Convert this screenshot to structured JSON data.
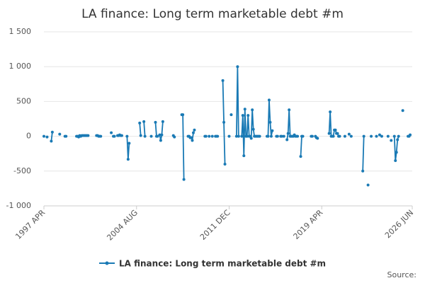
{
  "chart_data": {
    "type": "line",
    "title": "LA finance: Long term marketable debt #m",
    "source_label": "Source:",
    "categories": [
      "1997 APR",
      null,
      null,
      null,
      null,
      null,
      null,
      null,
      null,
      null,
      null,
      null,
      null,
      null,
      null,
      null,
      null,
      null,
      null,
      null,
      null,
      null,
      null,
      null,
      null,
      null,
      null,
      null,
      null,
      null,
      null,
      null,
      null,
      null,
      null,
      null,
      null,
      null,
      null,
      null,
      null,
      null,
      null,
      null,
      null,
      null,
      null,
      null,
      null,
      null,
      null,
      null,
      null,
      null,
      null,
      null,
      null,
      null,
      null,
      null,
      null,
      null,
      null,
      null,
      null,
      null,
      null,
      null,
      null,
      null,
      null,
      null,
      null,
      null,
      null,
      null,
      null,
      null,
      null,
      null,
      null,
      null,
      null,
      null,
      null,
      null,
      null,
      null,
      "2004 AUG",
      null,
      null,
      null,
      null,
      null,
      null,
      null,
      null,
      null,
      null,
      null,
      null,
      null,
      null,
      null,
      null,
      null,
      null,
      null,
      null,
      null,
      null,
      null,
      null,
      null,
      null,
      null,
      null,
      null,
      null,
      null,
      null,
      null,
      null,
      null,
      null,
      null,
      null,
      null,
      null,
      null,
      null,
      null,
      null,
      null,
      null,
      null,
      null,
      null,
      null,
      null,
      null,
      null,
      null,
      null,
      null,
      null,
      null,
      null,
      null,
      null,
      null,
      null,
      null,
      null,
      null,
      null,
      null,
      null,
      null,
      null,
      null,
      null,
      null,
      null,
      null,
      null,
      null,
      null,
      null,
      null,
      null,
      null,
      null,
      null,
      null,
      null,
      "2011 DEC",
      null,
      null,
      null,
      null,
      null,
      null,
      null,
      null,
      null,
      null,
      null,
      null,
      null,
      null,
      null,
      null,
      null,
      null,
      null,
      null,
      null,
      null,
      null,
      null,
      null,
      null,
      null,
      null,
      null,
      null,
      null,
      null,
      null,
      null,
      null,
      null,
      null,
      null,
      null,
      null,
      null,
      null,
      null,
      null,
      null,
      null,
      null,
      null,
      null,
      null,
      null,
      null,
      null,
      null,
      null,
      null,
      null,
      null,
      null,
      null,
      null,
      null,
      null,
      null,
      null,
      null,
      null,
      null,
      null,
      null,
      null,
      null,
      null,
      null,
      null,
      null,
      null,
      null,
      null,
      null,
      null,
      null,
      null,
      null,
      null,
      null,
      null,
      "2019 APR",
      null,
      null,
      null,
      null,
      null,
      null,
      null,
      null,
      null,
      null,
      null,
      null,
      null,
      null,
      null,
      null,
      null,
      null,
      null,
      null,
      null,
      null,
      null,
      null,
      null,
      null,
      null,
      null,
      null,
      null,
      null,
      null,
      null,
      null,
      null,
      null,
      null,
      null,
      null,
      null,
      null,
      null,
      null,
      null,
      null,
      null,
      null,
      null,
      null,
      null,
      null,
      null,
      null,
      null,
      null,
      null,
      null,
      null,
      null,
      null,
      null,
      null,
      null,
      null,
      null,
      null,
      null,
      null,
      null,
      null,
      null,
      null,
      null,
      null,
      null,
      null,
      null,
      null,
      null,
      null,
      null,
      null,
      null,
      null,
      null,
      "2026 JUN"
    ],
    "series": [
      {
        "name": "LA finance: Long term marketable debt #m",
        "color": "#1a7ab5",
        "values": [
          0,
          null,
          null,
          -10,
          null,
          null,
          null,
          -70,
          60,
          null,
          null,
          null,
          null,
          null,
          null,
          30,
          null,
          null,
          null,
          null,
          0,
          0,
          null,
          null,
          null,
          null,
          null,
          null,
          null,
          null,
          null,
          0,
          0,
          -10,
          10,
          0,
          10,
          10,
          10,
          10,
          10,
          10,
          10,
          null,
          null,
          null,
          null,
          null,
          null,
          null,
          10,
          10,
          0,
          0,
          0,
          null,
          null,
          null,
          null,
          null,
          null,
          null,
          null,
          null,
          50,
          null,
          0,
          0,
          null,
          null,
          10,
          10,
          20,
          10,
          10,
          null,
          null,
          null,
          null,
          0,
          -330,
          -100,
          null,
          null,
          null,
          null,
          null,
          null,
          null,
          null,
          null,
          190,
          10,
          null,
          null,
          210,
          0,
          null,
          null,
          null,
          null,
          null,
          0,
          null,
          null,
          null,
          200,
          0,
          0,
          null,
          20,
          -60,
          20,
          210,
          null,
          null,
          null,
          null,
          null,
          null,
          null,
          null,
          null,
          10,
          -10,
          null,
          null,
          null,
          null,
          null,
          null,
          310,
          310,
          -620,
          null,
          null,
          null,
          0,
          0,
          -20,
          -20,
          -60,
          50,
          90,
          null,
          null,
          null,
          null,
          null,
          null,
          null,
          null,
          null,
          0,
          0,
          null,
          null,
          0,
          null,
          null,
          0,
          null,
          null,
          0,
          0,
          0,
          null,
          null,
          null,
          null,
          800,
          200,
          -400,
          null,
          null,
          null,
          0,
          null,
          310,
          null,
          null,
          null,
          null,
          0,
          1000,
          0,
          null,
          null,
          0,
          300,
          -280,
          390,
          0,
          0,
          300,
          0,
          0,
          -30,
          380,
          100,
          0,
          0,
          0,
          0,
          0,
          0,
          null,
          null,
          null,
          null,
          null,
          null,
          0,
          0,
          520,
          200,
          0,
          80,
          null,
          null,
          null,
          0,
          0,
          null,
          null,
          0,
          0,
          null,
          0,
          null,
          null,
          -50,
          40,
          380,
          0,
          0,
          0,
          0,
          20,
          0,
          0,
          0,
          null,
          null,
          -290,
          0,
          0,
          null,
          null,
          null,
          null,
          null,
          null,
          null,
          0,
          0,
          null,
          null,
          0,
          -20,
          -30,
          null,
          null,
          null,
          null,
          null,
          null,
          null,
          null,
          null,
          null,
          40,
          350,
          0,
          0,
          0,
          90,
          90,
          40,
          40,
          0,
          0,
          null,
          null,
          null,
          null,
          0,
          null,
          null,
          null,
          30,
          null,
          0,
          null,
          null,
          null,
          null,
          null,
          null,
          null,
          null,
          null,
          null,
          -500,
          0,
          null,
          null,
          null,
          -700,
          null,
          null,
          0,
          null,
          null,
          null,
          null,
          0,
          null,
          null,
          20,
          null,
          0,
          null,
          null,
          null,
          null,
          null,
          0,
          null,
          null,
          -60,
          null,
          null,
          0,
          -350,
          -230,
          -50,
          0,
          null,
          null,
          null,
          370,
          null,
          null,
          null,
          null,
          0,
          0,
          20,
          null,
          null
        ]
      }
    ],
    "ylim": [
      -1000,
      1500
    ],
    "yticks": [
      {
        "value": -1000,
        "label": "-1 000"
      },
      -500,
      0,
      500,
      {
        "value": 1000,
        "label": "1 000"
      },
      {
        "value": 1500,
        "label": "1 500"
      }
    ],
    "grid": true
  }
}
